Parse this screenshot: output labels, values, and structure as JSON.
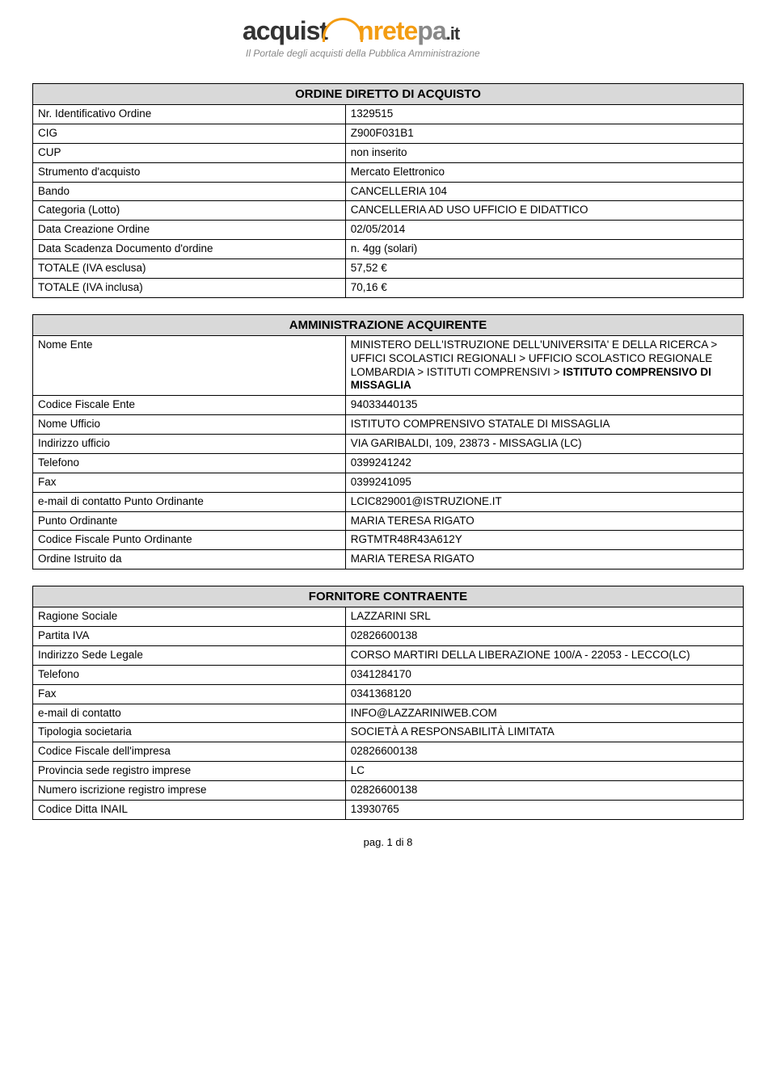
{
  "logo": {
    "part1": "acquist",
    "part2": "nrete",
    "part3": "pa",
    "suffix": ".it",
    "subtitle": "Il Portale degli acquisti della Pubblica Amministrazione"
  },
  "section1": {
    "title": "ORDINE DIRETTO DI ACQUISTO",
    "rows": [
      {
        "k": "Nr. Identificativo Ordine",
        "v": "1329515"
      },
      {
        "k": "CIG",
        "v": "Z900F031B1"
      },
      {
        "k": "CUP",
        "v": "non inserito"
      },
      {
        "k": "Strumento d'acquisto",
        "v": "Mercato Elettronico"
      },
      {
        "k": "Bando",
        "v": "CANCELLERIA 104"
      },
      {
        "k": "Categoria (Lotto)",
        "v": "CANCELLERIA AD USO UFFICIO E DIDATTICO"
      },
      {
        "k": "Data Creazione Ordine",
        "v": "02/05/2014"
      },
      {
        "k": "Data Scadenza Documento d'ordine",
        "v": "n. 4gg (solari)"
      },
      {
        "k": "TOTALE (IVA esclusa)",
        "v": "57,52 €"
      },
      {
        "k": "TOTALE (IVA inclusa)",
        "v": "70,16 €"
      }
    ]
  },
  "section2": {
    "title": "AMMINISTRAZIONE ACQUIRENTE",
    "nome_ente_key": "Nome Ente",
    "nome_ente_prefix": "MINISTERO DELL'ISTRUZIONE DELL'UNIVERSITA' E DELLA RICERCA > UFFICI SCOLASTICI REGIONALI > UFFICIO SCOLASTICO REGIONALE LOMBARDIA > ISTITUTI COMPRENSIVI > ",
    "nome_ente_bold": "ISTITUTO COMPRENSIVO DI MISSAGLIA",
    "rows": [
      {
        "k": "Codice Fiscale Ente",
        "v": "94033440135"
      },
      {
        "k": "Nome Ufficio",
        "v": "ISTITUTO COMPRENSIVO STATALE DI MISSAGLIA"
      },
      {
        "k": "Indirizzo ufficio",
        "v": "VIA GARIBALDI, 109, 23873 - MISSAGLIA (LC)"
      },
      {
        "k": "Telefono",
        "v": "0399241242"
      },
      {
        "k": "Fax",
        "v": "0399241095"
      },
      {
        "k": "e-mail di contatto Punto Ordinante",
        "v": "LCIC829001@ISTRUZIONE.IT"
      },
      {
        "k": "Punto Ordinante",
        "v": "MARIA TERESA RIGATO"
      },
      {
        "k": "Codice Fiscale Punto Ordinante",
        "v": "RGTMTR48R43A612Y"
      },
      {
        "k": "Ordine Istruito da",
        "v": "MARIA TERESA RIGATO"
      }
    ]
  },
  "section3": {
    "title": "FORNITORE CONTRAENTE",
    "rows": [
      {
        "k": "Ragione Sociale",
        "v": "LAZZARINI SRL"
      },
      {
        "k": "Partita IVA",
        "v": "02826600138"
      },
      {
        "k": "Indirizzo Sede Legale",
        "v": "CORSO MARTIRI DELLA LIBERAZIONE 100/A - 22053 - LECCO(LC)"
      },
      {
        "k": "Telefono",
        "v": "0341284170"
      },
      {
        "k": "Fax",
        "v": "0341368120"
      },
      {
        "k": "e-mail di contatto",
        "v": "INFO@LAZZARINIWEB.COM"
      },
      {
        "k": "Tipologia societaria",
        "v": "SOCIETÀ A RESPONSABILITÀ LIMITATA"
      },
      {
        "k": "Codice Fiscale dell'impresa",
        "v": "02826600138"
      },
      {
        "k": "Provincia sede registro imprese",
        "v": "LC"
      },
      {
        "k": "Numero iscrizione registro imprese",
        "v": "02826600138"
      },
      {
        "k": "Codice Ditta INAIL",
        "v": "13930765"
      }
    ]
  },
  "footer": "pag. 1 di 8"
}
